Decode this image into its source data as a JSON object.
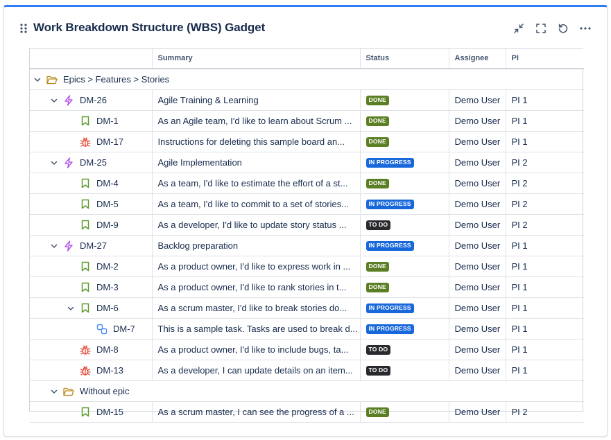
{
  "gadget": {
    "title": "Work Breakdown Structure (WBS) Gadget"
  },
  "table": {
    "columns": [
      "",
      "Summary",
      "Status",
      "Assignee",
      "PI"
    ],
    "rows": [
      {
        "kind": "group",
        "level": 0,
        "expanded": true,
        "icon": "folder-icon",
        "label": "Epics > Features > Stories"
      },
      {
        "kind": "issue",
        "level": 1,
        "expanded": true,
        "icon": "epic-icon",
        "key": "DM-26",
        "summary": "Agile Training & Learning",
        "status": "DONE",
        "statusClass": "done",
        "assignee": "Demo User",
        "pi": "PI 1"
      },
      {
        "kind": "issue",
        "level": 2,
        "icon": "story-icon",
        "key": "DM-1",
        "summary": "As an Agile team, I'd like to learn about Scrum ...",
        "status": "DONE",
        "statusClass": "done",
        "assignee": "Demo User",
        "pi": "PI 1"
      },
      {
        "kind": "issue",
        "level": 2,
        "icon": "bug-icon",
        "key": "DM-17",
        "summary": "Instructions for deleting this sample board an...",
        "status": "DONE",
        "statusClass": "done",
        "assignee": "Demo User",
        "pi": "PI 1"
      },
      {
        "kind": "issue",
        "level": 1,
        "expanded": true,
        "icon": "epic-icon",
        "key": "DM-25",
        "summary": "Agile Implementation",
        "status": "IN PROGRESS",
        "statusClass": "inprogress",
        "assignee": "Demo User",
        "pi": "PI 2"
      },
      {
        "kind": "issue",
        "level": 2,
        "icon": "story-icon",
        "key": "DM-4",
        "summary": "As a team, I'd like to estimate the effort of a st...",
        "status": "DONE",
        "statusClass": "done",
        "assignee": "Demo User",
        "pi": "PI 2"
      },
      {
        "kind": "issue",
        "level": 2,
        "icon": "story-icon",
        "key": "DM-5",
        "summary": "As a team, I'd like to commit to a set of stories...",
        "status": "IN PROGRESS",
        "statusClass": "inprogress",
        "assignee": "Demo User",
        "pi": "PI 2"
      },
      {
        "kind": "issue",
        "level": 2,
        "icon": "story-icon",
        "key": "DM-9",
        "summary": "As a developer, I'd like to update story status ...",
        "status": "TO DO",
        "statusClass": "todo",
        "assignee": "Demo User",
        "pi": "PI 2"
      },
      {
        "kind": "issue",
        "level": 1,
        "expanded": true,
        "icon": "epic-icon",
        "key": "DM-27",
        "summary": "Backlog preparation",
        "status": "IN PROGRESS",
        "statusClass": "inprogress",
        "assignee": "Demo User",
        "pi": "PI 1"
      },
      {
        "kind": "issue",
        "level": 2,
        "icon": "story-icon",
        "key": "DM-2",
        "summary": "As a product owner, I'd like to express work in ...",
        "status": "DONE",
        "statusClass": "done",
        "assignee": "Demo User",
        "pi": "PI 1"
      },
      {
        "kind": "issue",
        "level": 2,
        "icon": "story-icon",
        "key": "DM-3",
        "summary": "As a product owner, I'd like to rank stories in t...",
        "status": "DONE",
        "statusClass": "done",
        "assignee": "Demo User",
        "pi": "PI 1"
      },
      {
        "kind": "issue",
        "level": 2,
        "expanded": true,
        "icon": "story-icon",
        "key": "DM-6",
        "summary": "As a scrum master, I'd like to break stories do...",
        "status": "IN PROGRESS",
        "statusClass": "inprogress",
        "assignee": "Demo User",
        "pi": "PI 1"
      },
      {
        "kind": "issue",
        "level": 3,
        "icon": "subtask-icon",
        "key": "DM-7",
        "summary": "This is a sample task. Tasks are used to break d...",
        "status": "IN PROGRESS",
        "statusClass": "inprogress",
        "assignee": "Demo User",
        "pi": "PI 1"
      },
      {
        "kind": "issue",
        "level": 2,
        "icon": "bug-icon",
        "key": "DM-8",
        "summary": "As a product owner, I'd like to include bugs, ta...",
        "status": "TO DO",
        "statusClass": "todo",
        "assignee": "Demo User",
        "pi": "PI 1"
      },
      {
        "kind": "issue",
        "level": 2,
        "icon": "bug-icon",
        "key": "DM-13",
        "summary": "As a developer, I can update details on an item...",
        "status": "TO DO",
        "statusClass": "todo",
        "assignee": "Demo User",
        "pi": "PI 1"
      },
      {
        "kind": "group",
        "level": 1,
        "expanded": true,
        "icon": "folder-icon",
        "label": "Without epic"
      },
      {
        "kind": "issue",
        "level": 2,
        "icon": "story-icon",
        "key": "DM-15",
        "summary": "As a scrum master, I can see the progress of a ...",
        "status": "DONE",
        "statusClass": "done",
        "assignee": "Demo User",
        "pi": "PI 2"
      }
    ]
  },
  "colors": {
    "accent": "#2f7cf6",
    "done": "#5b7f24",
    "inprogress": "#1868db",
    "todo": "#292a2e",
    "epic": "#b553e8",
    "story": "#5b9a28",
    "bug": "#e5493a",
    "subtask": "#4c8df6",
    "folder": "#b98a1a"
  }
}
